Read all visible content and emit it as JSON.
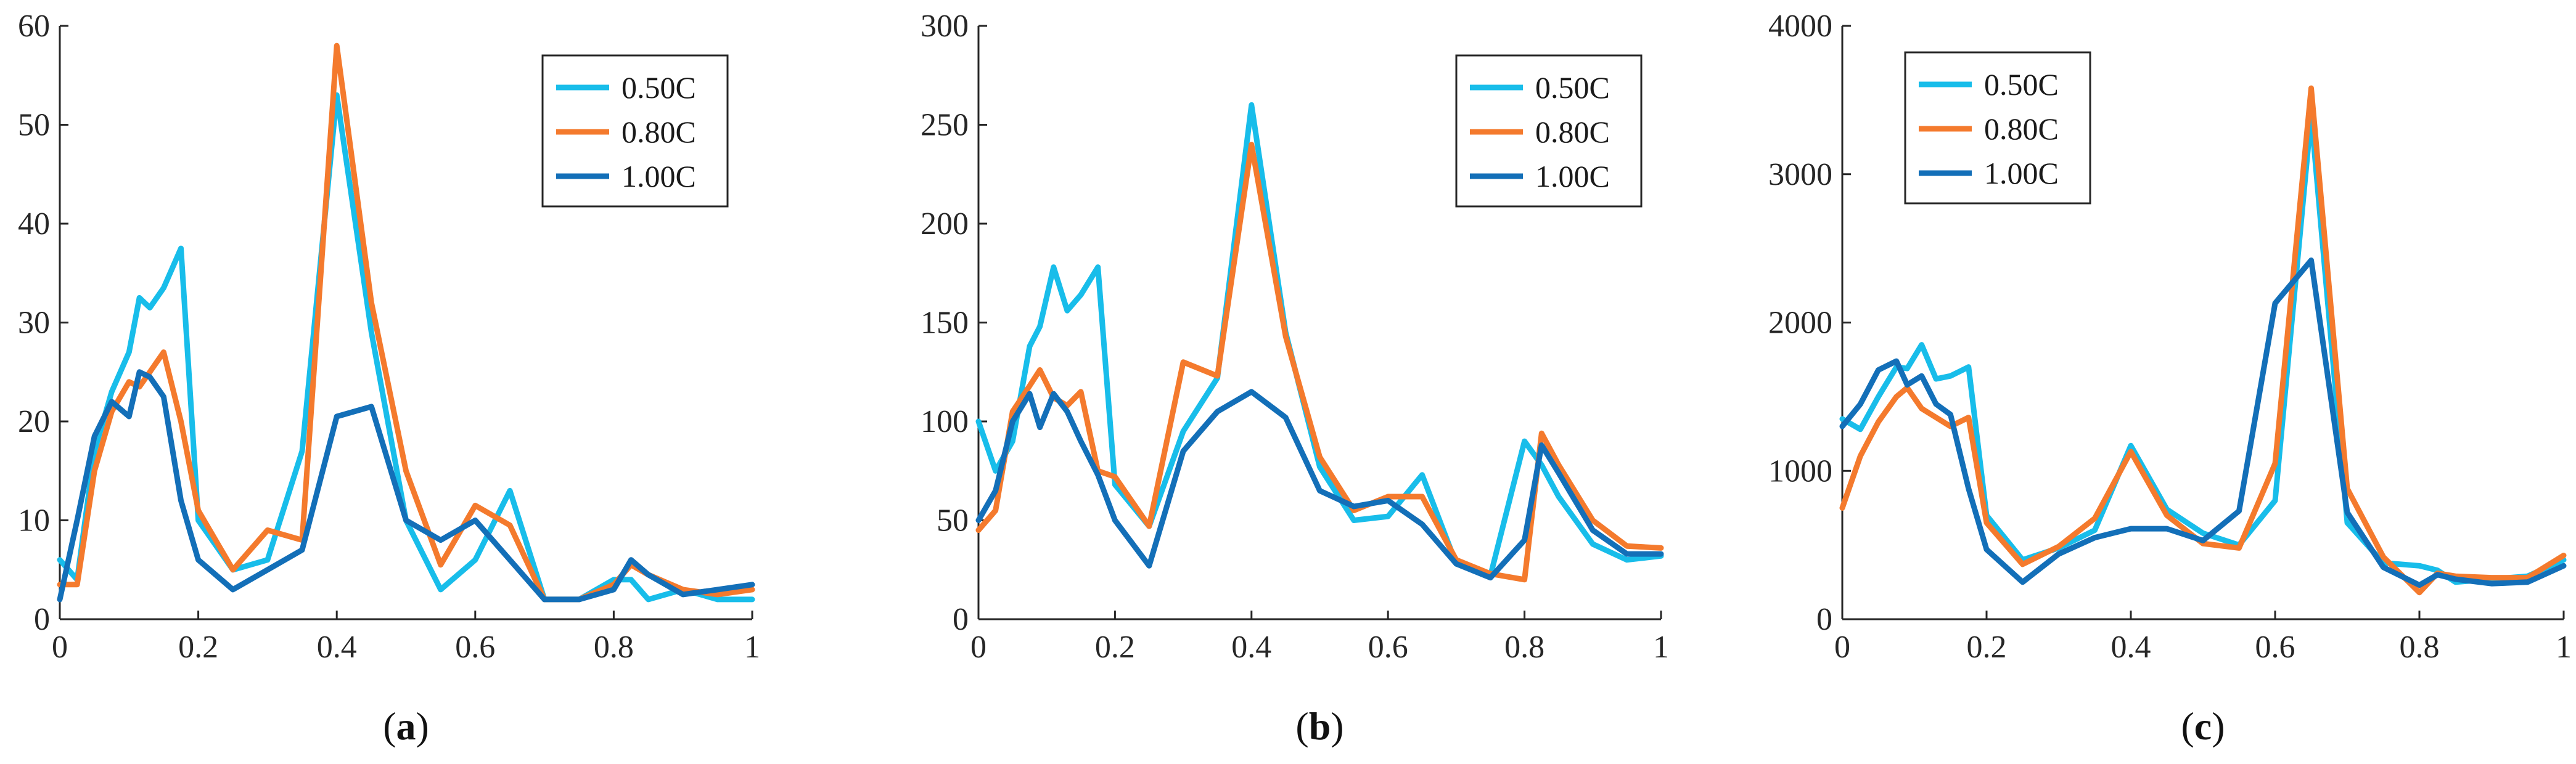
{
  "chart_data": [
    {
      "type": "line",
      "panel_label": "a",
      "xlim": [
        0,
        1
      ],
      "ylim": [
        0,
        60
      ],
      "xticks": [
        "0",
        "0.2",
        "0.4",
        "0.6",
        "0.8",
        "1"
      ],
      "yticks": [
        "0",
        "10",
        "20",
        "30",
        "40",
        "50",
        "60"
      ],
      "legend": {
        "placement": "top-right"
      },
      "series": [
        {
          "name": "0.50C",
          "color": "#18BDEA",
          "x": [
            0,
            0.025,
            0.05,
            0.075,
            0.1,
            0.115,
            0.13,
            0.15,
            0.175,
            0.2,
            0.25,
            0.3,
            0.35,
            0.4,
            0.45,
            0.5,
            0.55,
            0.6,
            0.65,
            0.7,
            0.75,
            0.8,
            0.825,
            0.85,
            0.9,
            0.95,
            1
          ],
          "values": [
            6,
            4,
            17,
            23,
            27,
            32.5,
            31.5,
            33.5,
            37.5,
            10,
            5,
            6,
            17,
            53,
            29,
            10,
            3,
            6,
            13,
            2,
            2,
            4,
            4,
            2,
            3,
            2,
            2
          ]
        },
        {
          "name": "0.80C",
          "color": "#F47A2D",
          "x": [
            0,
            0.025,
            0.05,
            0.075,
            0.1,
            0.115,
            0.13,
            0.15,
            0.175,
            0.2,
            0.25,
            0.3,
            0.35,
            0.4,
            0.45,
            0.5,
            0.55,
            0.6,
            0.65,
            0.7,
            0.75,
            0.8,
            0.825,
            0.85,
            0.9,
            0.95,
            1
          ],
          "values": [
            3.5,
            3.5,
            15,
            21,
            24,
            23.5,
            25,
            27,
            20,
            11,
            5,
            9,
            8,
            58,
            32,
            15,
            5.5,
            11.5,
            9.5,
            2,
            2,
            3.5,
            5.5,
            4.5,
            3,
            2.5,
            3
          ]
        },
        {
          "name": "1.00C",
          "color": "#136FB8",
          "x": [
            0,
            0.025,
            0.05,
            0.075,
            0.1,
            0.115,
            0.13,
            0.15,
            0.175,
            0.2,
            0.25,
            0.3,
            0.35,
            0.4,
            0.45,
            0.5,
            0.55,
            0.6,
            0.65,
            0.7,
            0.75,
            0.8,
            0.825,
            0.85,
            0.9,
            0.95,
            1
          ],
          "values": [
            2,
            10,
            18.5,
            22,
            20.5,
            25,
            24.5,
            22.5,
            12,
            6,
            3,
            5,
            7,
            20.5,
            21.5,
            10,
            8,
            10,
            6,
            2,
            2,
            3,
            6,
            4.5,
            2.5,
            3,
            3.5
          ]
        }
      ]
    },
    {
      "type": "line",
      "panel_label": "b",
      "xlim": [
        0,
        1
      ],
      "ylim": [
        0,
        300
      ],
      "xticks": [
        "0",
        "0.2",
        "0.4",
        "0.6",
        "0.8",
        "1"
      ],
      "yticks": [
        "0",
        "50",
        "100",
        "150",
        "200",
        "250",
        "300"
      ],
      "legend": {
        "placement": "top-right"
      },
      "series": [
        {
          "name": "0.50C",
          "color": "#18BDEA",
          "x": [
            0,
            0.025,
            0.05,
            0.075,
            0.09,
            0.11,
            0.13,
            0.15,
            0.175,
            0.2,
            0.25,
            0.3,
            0.35,
            0.4,
            0.45,
            0.5,
            0.55,
            0.6,
            0.65,
            0.7,
            0.75,
            0.8,
            0.825,
            0.85,
            0.9,
            0.95,
            1
          ],
          "values": [
            100,
            75,
            90,
            138,
            148,
            178,
            156,
            164,
            178,
            68,
            47,
            95,
            122,
            260,
            145,
            77,
            50,
            52,
            73,
            28,
            22,
            90,
            78,
            62,
            38,
            30,
            32
          ]
        },
        {
          "name": "0.80C",
          "color": "#F47A2D",
          "x": [
            0,
            0.025,
            0.05,
            0.075,
            0.09,
            0.11,
            0.13,
            0.15,
            0.175,
            0.2,
            0.25,
            0.3,
            0.35,
            0.4,
            0.45,
            0.5,
            0.55,
            0.6,
            0.65,
            0.7,
            0.75,
            0.8,
            0.825,
            0.85,
            0.9,
            0.95,
            1
          ],
          "values": [
            45,
            55,
            105,
            118,
            126,
            112,
            108,
            115,
            75,
            72,
            47,
            130,
            123,
            240,
            143,
            82,
            55,
            62,
            62,
            30,
            23,
            20,
            94,
            78,
            50,
            37,
            36
          ]
        },
        {
          "name": "1.00C",
          "color": "#136FB8",
          "x": [
            0,
            0.025,
            0.05,
            0.075,
            0.09,
            0.11,
            0.13,
            0.15,
            0.175,
            0.2,
            0.25,
            0.3,
            0.35,
            0.4,
            0.45,
            0.5,
            0.55,
            0.6,
            0.65,
            0.7,
            0.75,
            0.8,
            0.825,
            0.85,
            0.9,
            0.95,
            1
          ],
          "values": [
            50,
            65,
            100,
            114,
            97,
            114,
            105,
            90,
            73,
            50,
            27,
            85,
            105,
            115,
            102,
            65,
            57,
            60,
            48,
            28,
            21,
            40,
            88,
            74,
            45,
            33,
            33
          ]
        }
      ]
    },
    {
      "type": "line",
      "panel_label": "c",
      "xlim": [
        0,
        1
      ],
      "ylim": [
        0,
        4000
      ],
      "xticks": [
        "0",
        "0.2",
        "0.4",
        "0.6",
        "0.8",
        "1"
      ],
      "yticks": [
        "0",
        "1000",
        "2000",
        "3000",
        "4000"
      ],
      "legend": {
        "placement": "top-left"
      },
      "series": [
        {
          "name": "0.50C",
          "color": "#18BDEA",
          "x": [
            0,
            0.025,
            0.05,
            0.075,
            0.09,
            0.11,
            0.13,
            0.15,
            0.175,
            0.2,
            0.25,
            0.3,
            0.35,
            0.4,
            0.45,
            0.5,
            0.55,
            0.6,
            0.65,
            0.7,
            0.75,
            0.8,
            0.825,
            0.85,
            0.9,
            0.95,
            1
          ],
          "values": [
            1350,
            1280,
            1500,
            1700,
            1690,
            1850,
            1620,
            1640,
            1700,
            700,
            400,
            480,
            600,
            1170,
            740,
            580,
            500,
            800,
            3400,
            650,
            380,
            360,
            330,
            250,
            270,
            290,
            400
          ]
        },
        {
          "name": "0.80C",
          "color": "#F47A2D",
          "x": [
            0,
            0.025,
            0.05,
            0.075,
            0.09,
            0.11,
            0.13,
            0.15,
            0.175,
            0.2,
            0.25,
            0.3,
            0.35,
            0.4,
            0.45,
            0.5,
            0.55,
            0.6,
            0.65,
            0.7,
            0.75,
            0.8,
            0.825,
            0.85,
            0.9,
            0.95,
            1
          ],
          "values": [
            750,
            1100,
            1330,
            1500,
            1560,
            1420,
            1360,
            1300,
            1360,
            650,
            370,
            490,
            680,
            1130,
            700,
            510,
            480,
            1050,
            3580,
            880,
            420,
            180,
            310,
            290,
            280,
            280,
            430
          ]
        },
        {
          "name": "1.00C",
          "color": "#136FB8",
          "x": [
            0,
            0.025,
            0.05,
            0.075,
            0.09,
            0.11,
            0.13,
            0.15,
            0.175,
            0.2,
            0.25,
            0.3,
            0.35,
            0.4,
            0.45,
            0.5,
            0.55,
            0.6,
            0.65,
            0.7,
            0.75,
            0.8,
            0.825,
            0.85,
            0.9,
            0.95,
            1
          ],
          "values": [
            1300,
            1450,
            1680,
            1740,
            1580,
            1640,
            1450,
            1380,
            880,
            470,
            250,
            440,
            550,
            610,
            610,
            530,
            730,
            2130,
            2420,
            720,
            350,
            230,
            300,
            270,
            240,
            250,
            360
          ]
        }
      ]
    }
  ]
}
